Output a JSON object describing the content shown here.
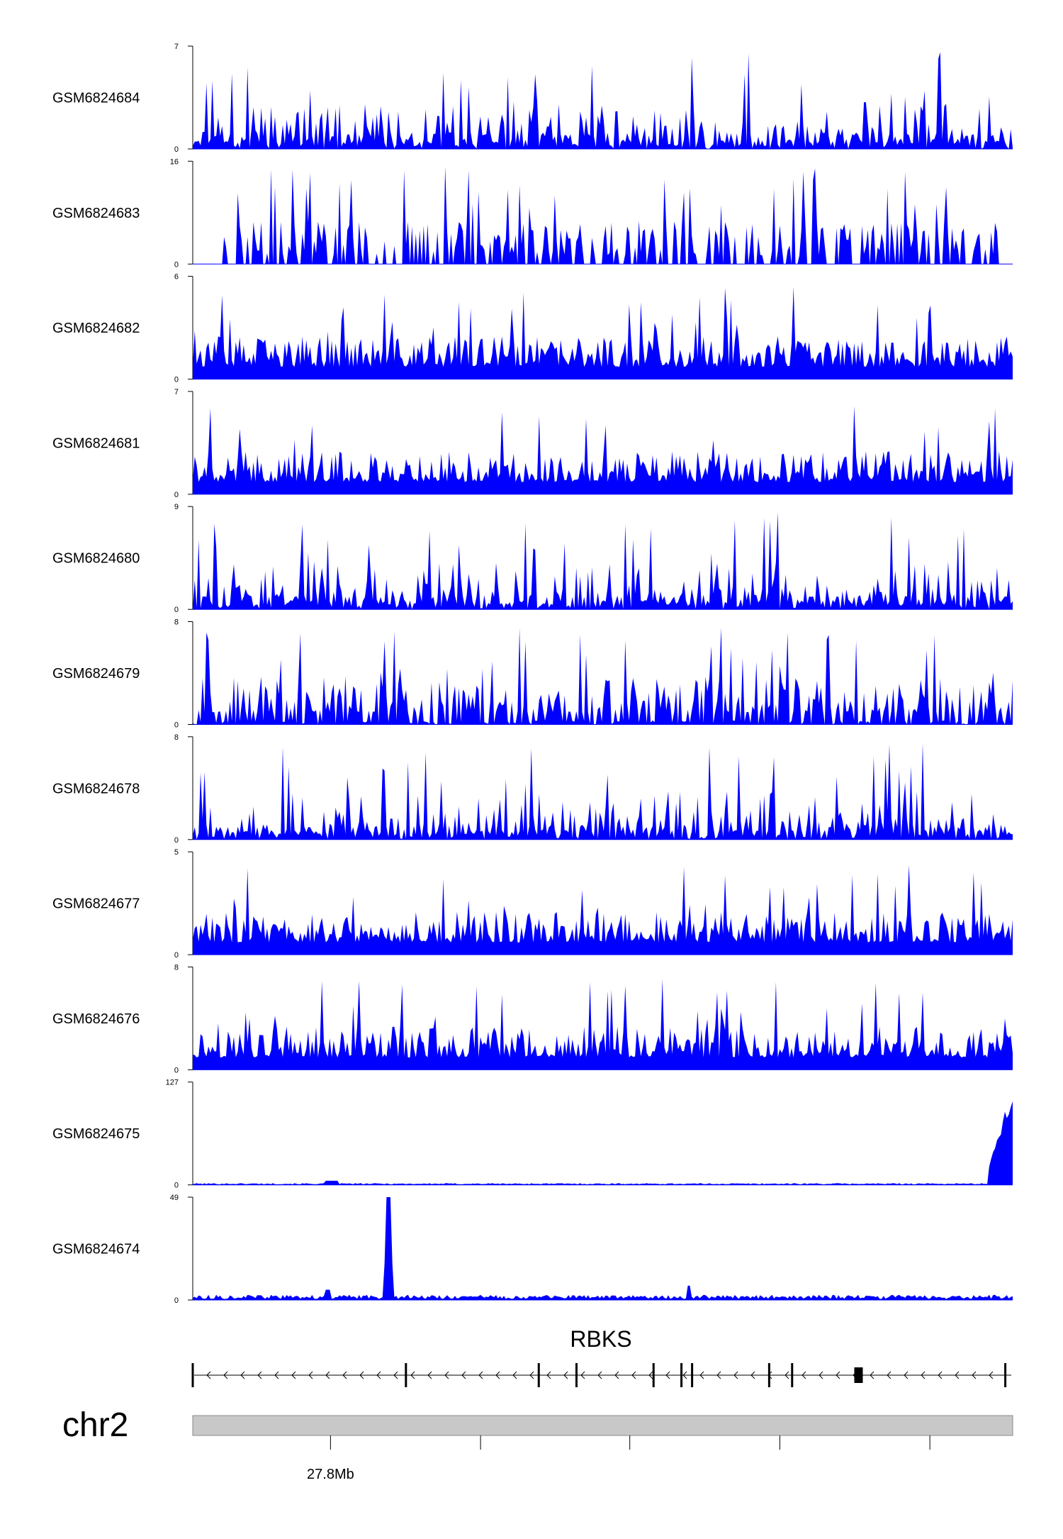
{
  "chart_data": {
    "type": "area",
    "chromosome": "chr2",
    "gene": {
      "name": "RBKS",
      "strand": "-",
      "exons": [
        0.0,
        0.26,
        0.422,
        0.468,
        0.562,
        0.596,
        0.609,
        0.703,
        0.731,
        0.812,
        0.991
      ]
    },
    "axis": {
      "ticks": [
        {
          "frac": 0.168,
          "label": "27.8Mb"
        },
        {
          "frac": 0.351,
          "label": ""
        },
        {
          "frac": 0.533,
          "label": ""
        },
        {
          "frac": 0.716,
          "label": ""
        },
        {
          "frac": 0.899,
          "label": ""
        }
      ]
    },
    "tracks": [
      {
        "name": "GSM6824684",
        "ymax": 7,
        "ymin": 0,
        "color": "#0000ff",
        "profile": "sparse",
        "seed": 11
      },
      {
        "name": "GSM6824683",
        "ymax": 16,
        "ymin": 0,
        "color": "#0000ff",
        "profile": "gappy",
        "seed": 23
      },
      {
        "name": "GSM6824682",
        "ymax": 6,
        "ymin": 0,
        "color": "#0000ff",
        "profile": "dense",
        "seed": 37
      },
      {
        "name": "GSM6824681",
        "ymax": 7,
        "ymin": 0,
        "color": "#0000ff",
        "profile": "dense",
        "seed": 41
      },
      {
        "name": "GSM6824680",
        "ymax": 9,
        "ymin": 0,
        "color": "#0000ff",
        "profile": "sparse",
        "seed": 53
      },
      {
        "name": "GSM6824679",
        "ymax": 8,
        "ymin": 0,
        "color": "#0000ff",
        "profile": "medium",
        "seed": 67
      },
      {
        "name": "GSM6824678",
        "ymax": 8,
        "ymin": 0,
        "color": "#0000ff",
        "profile": "sparse",
        "seed": 79
      },
      {
        "name": "GSM6824677",
        "ymax": 5,
        "ymin": 0,
        "color": "#0000ff",
        "profile": "dense",
        "seed": 83
      },
      {
        "name": "GSM6824676",
        "ymax": 8,
        "ymin": 0,
        "color": "#0000ff",
        "profile": "dense",
        "seed": 97
      },
      {
        "name": "GSM6824675",
        "ymax": 127,
        "ymin": 0,
        "color": "#0000ff",
        "profile": "endpeak",
        "seed": 101
      },
      {
        "name": "GSM6824674",
        "ymax": 49,
        "ymin": 0,
        "color": "#0000ff",
        "profile": "onepeak",
        "seed": 113
      }
    ]
  }
}
